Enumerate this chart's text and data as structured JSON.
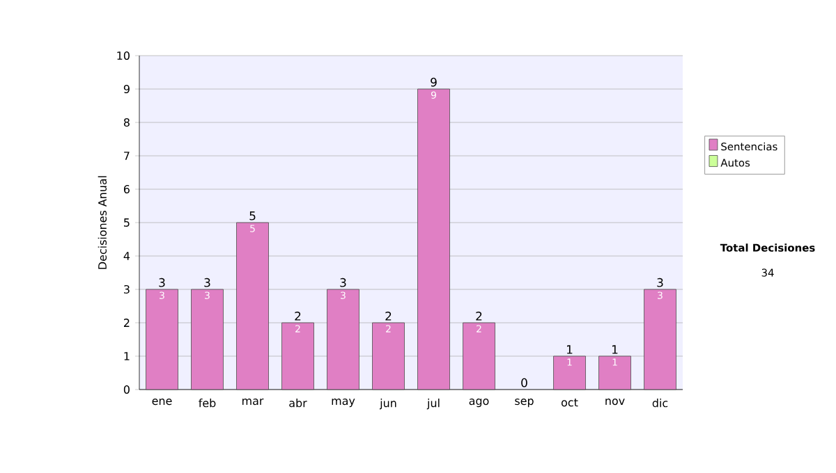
{
  "chart_data": {
    "type": "bar",
    "stacked": true,
    "ylabel": "Decisiones Anual",
    "categories": [
      "ene",
      "feb",
      "mar",
      "abr",
      "may",
      "jun",
      "jul",
      "ago",
      "sep",
      "oct",
      "nov",
      "dic"
    ],
    "series": [
      {
        "name": "Sentencias",
        "color": "#e07fc4",
        "values": [
          3,
          3,
          5,
          2,
          3,
          2,
          9,
          2,
          0,
          1,
          1,
          3
        ],
        "value_labels": [
          "3",
          "3",
          "5",
          "2",
          "3",
          "2",
          "9",
          "2",
          null,
          "1",
          "1",
          "3"
        ]
      },
      {
        "name": "Autos",
        "color": "#ccff99",
        "values": [
          0,
          0,
          0,
          0,
          0,
          0,
          0,
          0,
          0,
          0,
          0,
          0
        ]
      }
    ],
    "totals": [
      "3",
      "3",
      "5",
      "2",
      "3",
      "2",
      "9",
      "2",
      "0",
      "1",
      "1",
      "3"
    ],
    "ylim": [
      0,
      10
    ],
    "yticks": [
      0,
      1,
      2,
      3,
      4,
      5,
      6,
      7,
      8,
      9,
      10
    ],
    "grid": "y",
    "legend": "right",
    "annotations": [
      "Total Decisiones",
      "34"
    ]
  }
}
